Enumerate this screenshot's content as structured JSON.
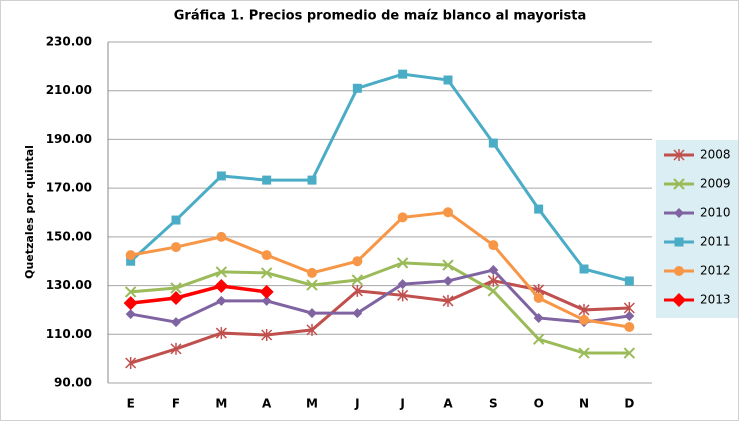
{
  "chart_data": {
    "type": "line",
    "title": "Gráfica 1.  Precios promedio de maíz blanco al mayorista",
    "y_label": "Quetzales por quintal",
    "categories": [
      "E",
      "F",
      "M",
      "A",
      "M",
      "J",
      "J",
      "A",
      "S",
      "O",
      "N",
      "D"
    ],
    "ylim": [
      90,
      230
    ],
    "yticks": [
      {
        "value": 90,
        "label": "90.00"
      },
      {
        "value": 110,
        "label": "110.00"
      },
      {
        "value": 130,
        "label": "130.00"
      },
      {
        "value": 150,
        "label": "150.00"
      },
      {
        "value": 170,
        "label": "170.00"
      },
      {
        "value": 190,
        "label": "190.00"
      },
      {
        "value": 210,
        "label": "210.00"
      },
      {
        "value": 230,
        "label": "230.00"
      }
    ],
    "grid": true,
    "legend": "right",
    "series": [
      {
        "name": "2008",
        "color": "#c0504d",
        "marker": "star",
        "values": [
          98.2,
          104,
          110.5,
          109.7,
          111.8,
          127.8,
          126,
          123.7,
          132,
          128.2,
          120,
          120.8
        ]
      },
      {
        "name": "2009",
        "color": "#9bbb59",
        "marker": "cross",
        "values": [
          127.4,
          129,
          135.6,
          135.2,
          130.2,
          132.3,
          139.3,
          138.4,
          127.8,
          108,
          102.3,
          102.3
        ]
      },
      {
        "name": "2010",
        "color": "#8064a2",
        "marker": "diamond",
        "values": [
          118.3,
          115,
          123.7,
          123.7,
          118.7,
          118.7,
          130.6,
          131.9,
          136.4,
          116.7,
          115,
          117.5
        ]
      },
      {
        "name": "2011",
        "color": "#4bacc6",
        "marker": "square",
        "values": [
          140,
          156.9,
          175,
          173.3,
          173.3,
          211,
          216.8,
          214.4,
          188.5,
          161.4,
          136.8,
          131.9
        ]
      },
      {
        "name": "2012",
        "color": "#f79646",
        "marker": "circle",
        "values": [
          142.5,
          145.8,
          150,
          142.5,
          135.2,
          140,
          158,
          160.1,
          146.6,
          124.9,
          115.9,
          113
        ]
      },
      {
        "name": "2013",
        "color": "#ff0000",
        "marker": "bigdiamond",
        "values": [
          122.8,
          124.9,
          129.8,
          127.4,
          null,
          null,
          null,
          null,
          null,
          null,
          null,
          null
        ]
      }
    ]
  }
}
